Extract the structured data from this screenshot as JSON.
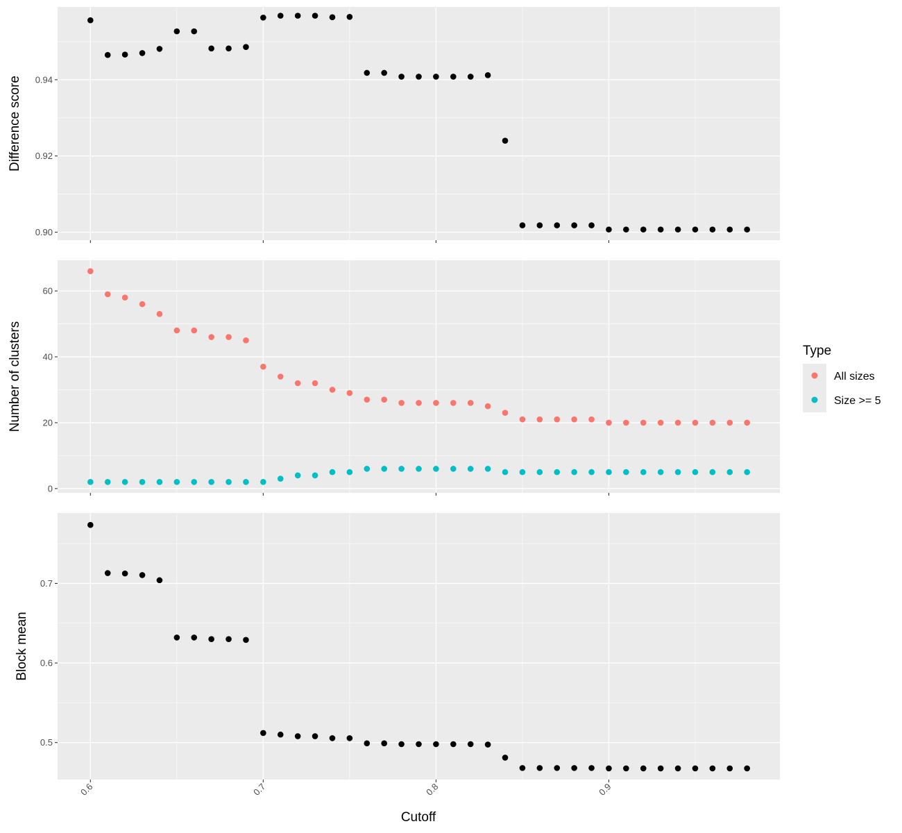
{
  "chart_data": {
    "type": "scatter",
    "x": [
      0.6,
      0.61,
      0.62,
      0.63,
      0.64,
      0.65,
      0.66,
      0.67,
      0.68,
      0.69,
      0.7,
      0.71,
      0.72,
      0.73,
      0.74,
      0.75,
      0.76,
      0.77,
      0.78,
      0.79,
      0.8,
      0.81,
      0.82,
      0.83,
      0.84,
      0.85,
      0.86,
      0.87,
      0.88,
      0.89,
      0.9,
      0.91,
      0.92,
      0.93,
      0.94,
      0.95,
      0.96,
      0.97,
      0.98
    ],
    "xlabel": "Cutoff",
    "x_ticks": [
      "0.6",
      "0.7",
      "0.8",
      "0.9"
    ],
    "xlim": [
      0.581,
      0.999
    ],
    "panels": [
      {
        "ylabel": "Difference score",
        "ylim": [
          0.8979,
          0.9591
        ],
        "y_ticks": [
          "0.90",
          "0.92",
          "0.94"
        ],
        "series": [
          {
            "color": "#000000",
            "values": [
              0.9556,
              0.9465,
              0.9466,
              0.947,
              0.9481,
              0.9527,
              0.9527,
              0.9482,
              0.9482,
              0.9486,
              0.9563,
              0.9568,
              0.9568,
              0.9568,
              0.9564,
              0.9565,
              0.9418,
              0.9418,
              0.9408,
              0.9408,
              0.9408,
              0.9408,
              0.9408,
              0.9412,
              0.924,
              0.9018,
              0.9018,
              0.9018,
              0.9018,
              0.9018,
              0.9007,
              0.9007,
              0.9007,
              0.9007,
              0.9007,
              0.9007,
              0.9007,
              0.9007,
              0.9007
            ]
          }
        ]
      },
      {
        "ylabel": "Number of clusters",
        "ylim": [
          -1.3,
          69.3
        ],
        "y_ticks": [
          "0",
          "20",
          "40",
          "60"
        ],
        "series": [
          {
            "name": "All sizes",
            "color": "#F8766D",
            "values": [
              66,
              59,
              58,
              56,
              53,
              48,
              48,
              46,
              46,
              45,
              37,
              34,
              32,
              32,
              30,
              29,
              27,
              27,
              26,
              26,
              26,
              26,
              26,
              25,
              23,
              21,
              21,
              21,
              21,
              21,
              20,
              20,
              20,
              20,
              20,
              20,
              20,
              20,
              20
            ]
          },
          {
            "name": "Size >= 5",
            "color": "#00BFC4",
            "values": [
              2,
              2,
              2,
              2,
              2,
              2,
              2,
              2,
              2,
              2,
              2,
              3,
              4,
              4,
              5,
              5,
              6,
              6,
              6,
              6,
              6,
              6,
              6,
              6,
              5,
              5,
              5,
              5,
              5,
              5,
              5,
              5,
              5,
              5,
              5,
              5,
              5,
              5,
              5
            ]
          }
        ]
      },
      {
        "ylabel": "Block mean",
        "ylim": [
          0.4535,
          0.7885
        ],
        "y_ticks": [
          "0.5",
          "0.6",
          "0.7"
        ],
        "series": [
          {
            "color": "#000000",
            "values": [
              0.7735,
              0.713,
              0.7125,
              0.7105,
              0.704,
              0.632,
              0.632,
              0.63,
              0.63,
              0.629,
              0.512,
              0.51,
              0.508,
              0.508,
              0.5055,
              0.5055,
              0.499,
              0.499,
              0.498,
              0.498,
              0.498,
              0.498,
              0.498,
              0.4975,
              0.481,
              0.468,
              0.468,
              0.468,
              0.468,
              0.468,
              0.4675,
              0.4675,
              0.4675,
              0.4675,
              0.4675,
              0.4675,
              0.4675,
              0.4675,
              0.4675
            ]
          }
        ]
      }
    ],
    "legend": {
      "title": "Type",
      "entries": [
        {
          "label": "All sizes",
          "color": "#F8766D"
        },
        {
          "label": "Size >= 5",
          "color": "#00BFC4"
        }
      ],
      "placement": "right"
    },
    "panel_background": "#EBEBEB",
    "grid": true
  }
}
